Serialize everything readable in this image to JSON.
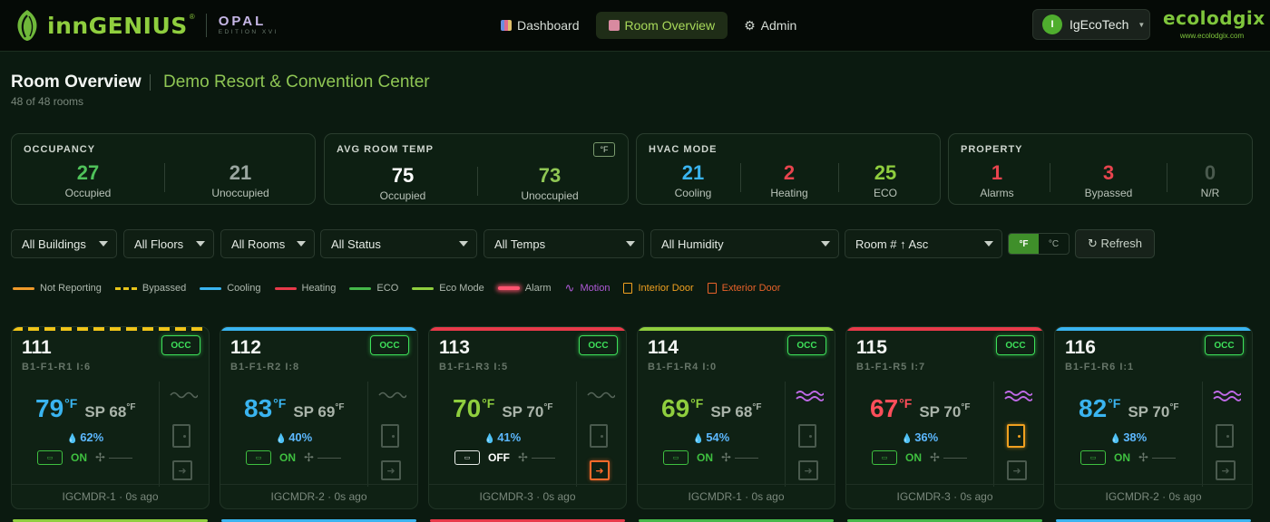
{
  "header": {
    "brand": "innGENIUS",
    "brand_reg": "®",
    "product": "OPAL",
    "edition": "EDITION XVI",
    "nav": [
      {
        "label": "Dashboard",
        "icon": "chart-icon",
        "active": false
      },
      {
        "label": "Room Overview",
        "icon": "building-icon",
        "active": true
      },
      {
        "label": "Admin",
        "icon": "gear-icon",
        "active": false
      }
    ],
    "user": {
      "initial": "I",
      "name": "IgEcoTech"
    },
    "partner": {
      "name": "ecolodgix",
      "url": "www.ecolodgix.com"
    }
  },
  "page": {
    "title": "Room Overview",
    "property": "Demo Resort & Convention Center",
    "count": "48 of 48 rooms"
  },
  "stats": {
    "occupancy": {
      "title": "OCCUPANCY",
      "a_val": "27",
      "a_lbl": "Occupied",
      "b_val": "21",
      "b_lbl": "Unoccupied"
    },
    "avg_temp": {
      "title": "AVG ROOM TEMP",
      "unit": "°F",
      "a_val": "75",
      "a_lbl": "Occupied",
      "b_val": "73",
      "b_lbl": "Unoccupied"
    },
    "hvac": {
      "title": "HVAC MODE",
      "a_val": "21",
      "a_lbl": "Cooling",
      "b_val": "2",
      "b_lbl": "Heating",
      "c_val": "25",
      "c_lbl": "ECO"
    },
    "property": {
      "title": "PROPERTY",
      "a_val": "1",
      "a_lbl": "Alarms",
      "b_val": "3",
      "b_lbl": "Bypassed",
      "c_val": "0",
      "c_lbl": "N/R"
    }
  },
  "filters": {
    "buildings": "All Buildings",
    "floors": "All Floors",
    "rooms": "All Rooms",
    "status": "All Status",
    "temps": "All Temps",
    "humidity": "All Humidity",
    "sort": "Room # ↑ Asc",
    "unit_f": "°F",
    "unit_c": "°C",
    "refresh": "↻ Refresh"
  },
  "legend": [
    {
      "label": "Not Reporting",
      "color": "#f09a2a",
      "type": "line"
    },
    {
      "label": "Bypassed",
      "color": "#e8c41a",
      "type": "dash"
    },
    {
      "label": "Cooling",
      "color": "#3ab4f0",
      "type": "line"
    },
    {
      "label": "Heating",
      "color": "#e83a4a",
      "type": "line"
    },
    {
      "label": "ECO",
      "color": "#45b84a",
      "type": "line"
    },
    {
      "label": "Eco Mode",
      "color": "#8fce3e",
      "type": "line"
    },
    {
      "label": "Alarm",
      "color": "#ff5470",
      "type": "alarm"
    },
    {
      "label": "Motion",
      "color": "#b05ad8",
      "type": "wave"
    },
    {
      "label": "Interior Door",
      "color": "#f0a020",
      "type": "door"
    },
    {
      "label": "Exterior Door",
      "color": "#e8622a",
      "type": "door"
    }
  ],
  "rooms": [
    {
      "num": "111",
      "occ": "OCC",
      "loc": "B1-F1-R1 I:6",
      "temp": "79",
      "temp_unit": "°F",
      "sp": "SP 68",
      "sp_unit": "°F",
      "hum": "62%",
      "tstat": "ON",
      "device": "IGCMDR-1 · 0s ago"
    },
    {
      "num": "112",
      "occ": "OCC",
      "loc": "B1-F1-R2 I:8",
      "temp": "83",
      "temp_unit": "°F",
      "sp": "SP 69",
      "sp_unit": "°F",
      "hum": "40%",
      "tstat": "ON",
      "device": "IGCMDR-2 · 0s ago"
    },
    {
      "num": "113",
      "occ": "OCC",
      "loc": "B1-F1-R3 I:5",
      "temp": "70",
      "temp_unit": "°F",
      "sp": "SP 70",
      "sp_unit": "°F",
      "hum": "41%",
      "tstat": "OFF",
      "device": "IGCMDR-3 · 0s ago"
    },
    {
      "num": "114",
      "occ": "OCC",
      "loc": "B1-F1-R4 I:0",
      "temp": "69",
      "temp_unit": "°F",
      "sp": "SP 68",
      "sp_unit": "°F",
      "hum": "54%",
      "tstat": "ON",
      "device": "IGCMDR-1 · 0s ago"
    },
    {
      "num": "115",
      "occ": "OCC",
      "loc": "B1-F1-R5 I:7",
      "temp": "67",
      "temp_unit": "°F",
      "sp": "SP 70",
      "sp_unit": "°F",
      "hum": "36%",
      "tstat": "ON",
      "device": "IGCMDR-3 · 0s ago"
    },
    {
      "num": "116",
      "occ": "OCC",
      "loc": "B1-F1-R6 I:1",
      "temp": "82",
      "temp_unit": "°F",
      "sp": "SP 70",
      "sp_unit": "°F",
      "hum": "38%",
      "tstat": "ON",
      "device": "IGCMDR-2 · 0s ago"
    }
  ]
}
